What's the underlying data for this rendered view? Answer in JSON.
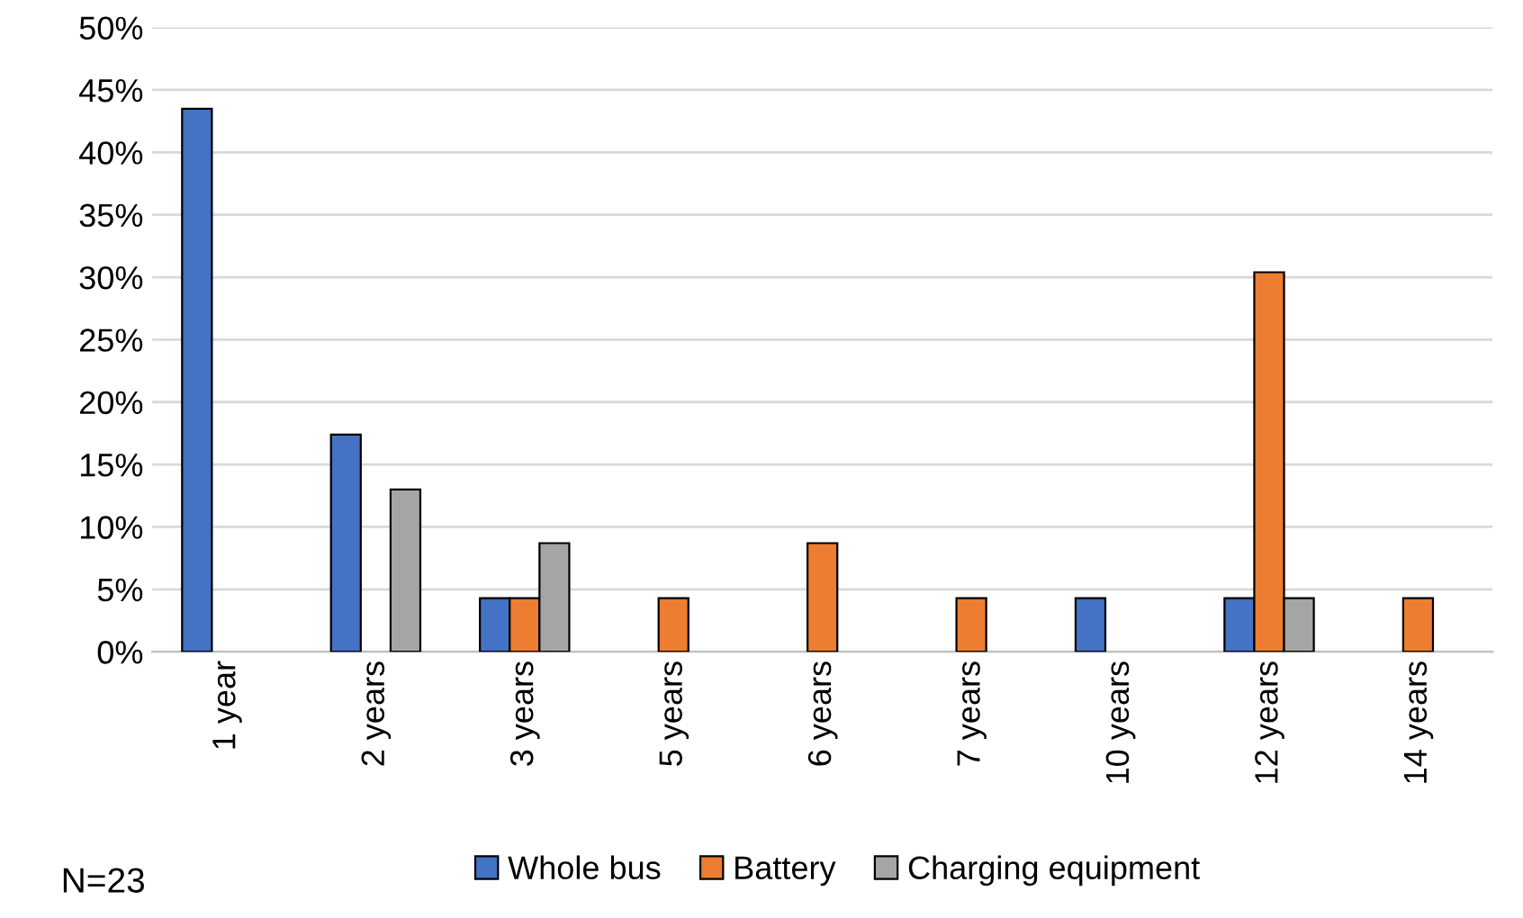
{
  "chart_data": {
    "type": "bar",
    "categories": [
      "1 year",
      "2 years",
      "3 years",
      "5 years",
      "6 years",
      "7 years",
      "10 years",
      "12 years",
      "14 years"
    ],
    "series": [
      {
        "name": "Whole bus",
        "color": "#4472c4",
        "values": [
          43.5,
          17.4,
          4.3,
          null,
          null,
          null,
          4.3,
          4.3,
          null
        ]
      },
      {
        "name": "Battery",
        "color": "#ed7d31",
        "values": [
          null,
          null,
          4.3,
          4.3,
          8.7,
          4.3,
          null,
          30.4,
          4.3
        ]
      },
      {
        "name": "Charging equipment",
        "color": "#a5a5a5",
        "values": [
          null,
          13.0,
          8.7,
          null,
          null,
          null,
          null,
          4.3,
          null
        ]
      }
    ],
    "ylim": [
      0,
      50
    ],
    "yticks": [
      {
        "value": 0,
        "label": "0%"
      },
      {
        "value": 5,
        "label": "5%"
      },
      {
        "value": 10,
        "label": "10%"
      },
      {
        "value": 15,
        "label": "15%"
      },
      {
        "value": 20,
        "label": "20%"
      },
      {
        "value": 25,
        "label": "25%"
      },
      {
        "value": 30,
        "label": "30%"
      },
      {
        "value": 35,
        "label": "35%"
      },
      {
        "value": 40,
        "label": "40%"
      },
      {
        "value": 45,
        "label": "45%"
      },
      {
        "value": 50,
        "label": "50%"
      }
    ],
    "grid": "y",
    "legend": "bottom",
    "annotations": [
      "N=23"
    ]
  }
}
